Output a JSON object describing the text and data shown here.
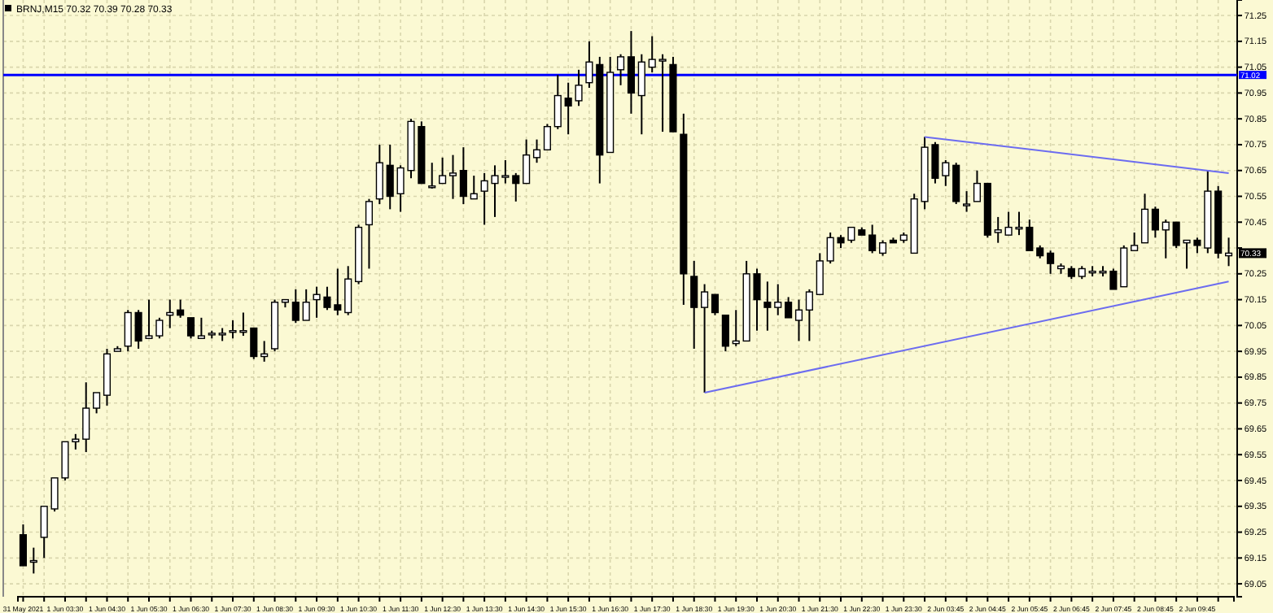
{
  "chart_data": {
    "type": "candlestick",
    "title": "BRNJ,M15 70.32 70.39 70.28 70.33",
    "ylim": [
      69.0,
      71.31
    ],
    "categories": [
      "31 May 2021",
      null,
      null,
      null,
      "1 Jun 03:30",
      null,
      null,
      null,
      "1 Jun 04:30",
      null,
      null,
      null,
      "1 Jun 05:30",
      null,
      null,
      null,
      "1 Jun 06:30",
      null,
      null,
      null,
      "1 Jun 07:30",
      null,
      null,
      null,
      "1 Jun 08:30",
      null,
      null,
      null,
      "1 Jun 09:30",
      null,
      null,
      null,
      "1 Jun 10:30",
      null,
      null,
      null,
      "1 Jun 11:30",
      null,
      null,
      null,
      "1 Jun 12:30",
      null,
      null,
      null,
      "1 Jun 13:30",
      null,
      null,
      null,
      "1 Jun 14:30",
      null,
      null,
      null,
      "1 Jun 15:30",
      null,
      null,
      null,
      "1 Jun 16:30",
      null,
      null,
      null,
      "1 Jun 17:30",
      null,
      null,
      null,
      "1 Jun 18:30",
      null,
      null,
      null,
      "1 Jun 19:30",
      null,
      null,
      null,
      "1 Jun 20:30",
      null,
      null,
      null,
      "1 Jun 21:30",
      null,
      null,
      null,
      "1 Jun 22:30",
      null,
      null,
      null,
      "1 Jun 23:30",
      null,
      null,
      null,
      "2 Jun 03:45",
      null,
      null,
      null,
      "2 Jun 04:45",
      null,
      null,
      null,
      "2 Jun 05:45",
      null,
      null,
      null,
      "2 Jun 06:45",
      null,
      null,
      null,
      "2 Jun 07:45",
      null,
      null,
      null,
      "2 Jun 08:45",
      null,
      null,
      null,
      "2 Jun 09:45",
      null,
      null,
      null
    ],
    "yticks": [
      69.05,
      69.15,
      69.25,
      69.35,
      69.45,
      69.55,
      69.65,
      69.75,
      69.85,
      69.95,
      70.05,
      70.15,
      70.25,
      {
        "value": 70.35,
        "label": null
      },
      70.45,
      70.55,
      70.65,
      70.75,
      70.85,
      70.95,
      71.05,
      71.15,
      71.25
    ],
    "grid": true,
    "series": [
      {
        "ohlc": [
          [
            69.24,
            69.28,
            69.12,
            69.12
          ],
          [
            69.14,
            69.19,
            69.09,
            69.14
          ],
          [
            69.23,
            69.35,
            69.15,
            69.35
          ],
          [
            69.34,
            69.46,
            69.33,
            69.46
          ],
          [
            69.46,
            69.6,
            69.45,
            69.6
          ],
          [
            69.6,
            69.63,
            69.57,
            69.61
          ],
          [
            69.61,
            69.83,
            69.56,
            69.73
          ],
          [
            69.73,
            69.79,
            69.71,
            69.79
          ],
          [
            69.78,
            69.96,
            69.74,
            69.94
          ],
          [
            69.95,
            69.97,
            69.95,
            69.96
          ],
          [
            69.97,
            70.11,
            69.95,
            70.1
          ],
          [
            70.1,
            70.11,
            69.96,
            69.99
          ],
          [
            70.0,
            70.15,
            70.0,
            70.01
          ],
          [
            70.01,
            70.08,
            70.0,
            70.07
          ],
          [
            70.09,
            70.15,
            70.04,
            70.1
          ],
          [
            70.11,
            70.15,
            70.08,
            70.09
          ],
          [
            70.08,
            70.08,
            70.0,
            70.01
          ],
          [
            70.0,
            70.08,
            70.0,
            70.01
          ],
          [
            70.02,
            70.03,
            70.0,
            70.02
          ],
          [
            70.02,
            70.04,
            69.99,
            70.02
          ],
          [
            70.03,
            70.07,
            70.0,
            70.03
          ],
          [
            70.03,
            70.1,
            70.01,
            70.03
          ],
          [
            70.04,
            70.04,
            69.92,
            69.93
          ],
          [
            69.93,
            69.99,
            69.91,
            69.94
          ],
          [
            69.96,
            70.15,
            69.95,
            70.14
          ],
          [
            70.14,
            70.15,
            70.12,
            70.15
          ],
          [
            70.14,
            70.19,
            70.06,
            70.07
          ],
          [
            70.07,
            70.19,
            70.07,
            70.14
          ],
          [
            70.15,
            70.2,
            70.08,
            70.17
          ],
          [
            70.16,
            70.2,
            70.11,
            70.12
          ],
          [
            70.13,
            70.27,
            70.09,
            70.11
          ],
          [
            70.1,
            70.28,
            70.09,
            70.23
          ],
          [
            70.22,
            70.44,
            70.21,
            70.43
          ],
          [
            70.44,
            70.54,
            70.27,
            70.53
          ],
          [
            70.54,
            70.75,
            70.52,
            70.68
          ],
          [
            70.67,
            70.75,
            70.5,
            70.55
          ],
          [
            70.56,
            70.67,
            70.49,
            70.66
          ],
          [
            70.65,
            70.85,
            70.62,
            70.84
          ],
          [
            70.82,
            70.84,
            70.6,
            70.6
          ],
          [
            70.59,
            70.68,
            70.58,
            70.59
          ],
          [
            70.6,
            70.7,
            70.6,
            70.63
          ],
          [
            70.63,
            70.71,
            70.54,
            70.64
          ],
          [
            70.65,
            70.74,
            70.52,
            70.55
          ],
          [
            70.54,
            70.63,
            70.54,
            70.56
          ],
          [
            70.57,
            70.64,
            70.44,
            70.61
          ],
          [
            70.6,
            70.67,
            70.47,
            70.63
          ],
          [
            70.63,
            70.69,
            70.6,
            70.63
          ],
          [
            70.63,
            70.64,
            70.53,
            70.6
          ],
          [
            70.6,
            70.77,
            70.6,
            70.71
          ],
          [
            70.7,
            70.77,
            70.68,
            70.73
          ],
          [
            70.73,
            70.83,
            70.73,
            70.82
          ],
          [
            70.82,
            71.02,
            70.81,
            70.94
          ],
          [
            70.93,
            70.99,
            70.79,
            70.9
          ],
          [
            70.92,
            71.04,
            70.9,
            70.98
          ],
          [
            70.99,
            71.15,
            70.97,
            71.07
          ],
          [
            71.06,
            71.09,
            70.6,
            70.71
          ],
          [
            70.72,
            71.09,
            70.72,
            71.03
          ],
          [
            71.04,
            71.1,
            70.98,
            71.09
          ],
          [
            71.09,
            71.19,
            70.87,
            70.95
          ],
          [
            70.94,
            71.1,
            70.79,
            71.07
          ],
          [
            71.05,
            71.17,
            71.03,
            71.08
          ],
          [
            71.08,
            71.1,
            70.8,
            71.08
          ],
          [
            71.06,
            71.09,
            70.8,
            70.8
          ],
          [
            70.79,
            70.87,
            70.13,
            70.25
          ],
          [
            70.24,
            70.3,
            69.96,
            70.12
          ],
          [
            70.12,
            70.21,
            69.79,
            70.18
          ],
          [
            70.17,
            70.17,
            70.09,
            70.1
          ],
          [
            70.09,
            70.09,
            69.95,
            69.97
          ],
          [
            69.98,
            70.11,
            69.97,
            69.99
          ],
          [
            69.99,
            70.3,
            69.99,
            70.25
          ],
          [
            70.25,
            70.27,
            70.03,
            70.15
          ],
          [
            70.14,
            70.22,
            70.03,
            70.12
          ],
          [
            70.12,
            70.21,
            70.09,
            70.14
          ],
          [
            70.14,
            70.16,
            70.08,
            70.08
          ],
          [
            70.07,
            70.15,
            69.99,
            70.11
          ],
          [
            70.11,
            70.19,
            69.99,
            70.18
          ],
          [
            70.17,
            70.33,
            70.17,
            70.3
          ],
          [
            70.3,
            70.41,
            70.29,
            70.39
          ],
          [
            70.39,
            70.4,
            70.35,
            70.37
          ],
          [
            70.38,
            70.43,
            70.37,
            70.43
          ],
          [
            70.42,
            70.43,
            70.4,
            70.4
          ],
          [
            70.4,
            70.44,
            70.33,
            70.34
          ],
          [
            70.33,
            70.38,
            70.32,
            70.37
          ],
          [
            70.38,
            70.39,
            70.37,
            70.37
          ],
          [
            70.38,
            70.41,
            70.37,
            70.4
          ],
          [
            70.33,
            70.56,
            70.33,
            70.54
          ],
          [
            70.53,
            70.78,
            70.5,
            70.74
          ],
          [
            70.75,
            70.76,
            70.6,
            70.62
          ],
          [
            70.63,
            70.69,
            70.59,
            70.68
          ],
          [
            70.67,
            70.68,
            70.52,
            70.53
          ],
          [
            70.52,
            70.57,
            70.49,
            70.52
          ],
          [
            70.53,
            70.65,
            70.53,
            70.6
          ],
          [
            70.6,
            70.6,
            70.39,
            70.4
          ],
          [
            70.41,
            70.47,
            70.37,
            70.42
          ],
          [
            70.4,
            70.49,
            70.4,
            70.43
          ],
          [
            70.43,
            70.49,
            70.4,
            70.43
          ],
          [
            70.43,
            70.46,
            70.34,
            70.34
          ],
          [
            70.35,
            70.36,
            70.31,
            70.32
          ],
          [
            70.33,
            70.34,
            70.25,
            70.29
          ],
          [
            70.27,
            70.29,
            70.25,
            70.28
          ],
          [
            70.27,
            70.28,
            70.23,
            70.24
          ],
          [
            70.24,
            70.28,
            70.23,
            70.27
          ],
          [
            70.26,
            70.28,
            70.24,
            70.26
          ],
          [
            70.26,
            70.28,
            70.24,
            70.26
          ],
          [
            70.26,
            70.27,
            70.19,
            70.19
          ],
          [
            70.2,
            70.36,
            70.2,
            70.35
          ],
          [
            70.34,
            70.41,
            70.34,
            70.36
          ],
          [
            70.37,
            70.56,
            70.37,
            70.5
          ],
          [
            70.5,
            70.51,
            70.39,
            70.42
          ],
          [
            70.42,
            70.46,
            70.31,
            70.45
          ],
          [
            70.45,
            70.45,
            70.35,
            70.36
          ],
          [
            70.37,
            70.38,
            70.27,
            70.38
          ],
          [
            70.38,
            70.39,
            70.33,
            70.36
          ],
          [
            70.35,
            70.65,
            70.33,
            70.57
          ],
          [
            70.57,
            70.59,
            70.31,
            70.33
          ],
          [
            70.32,
            70.39,
            70.28,
            70.33
          ]
        ]
      },
      {
        "type": "line",
        "values": [
          null,
          null,
          null,
          null,
          null,
          null,
          null,
          null,
          null,
          null,
          null,
          null,
          null,
          null,
          null,
          null,
          null,
          null,
          null,
          null,
          null,
          null,
          null,
          null,
          null,
          null,
          null,
          null,
          null,
          null,
          null,
          null,
          null,
          null,
          null,
          null,
          null,
          null,
          null,
          null,
          null,
          null,
          null,
          null,
          null,
          null,
          null,
          null,
          null,
          null,
          null,
          null,
          null,
          null,
          null,
          null,
          null,
          null,
          null,
          null,
          null,
          null,
          null,
          null,
          null,
          null,
          null,
          null,
          null,
          null,
          null,
          null,
          null,
          null,
          null,
          null,
          null,
          null,
          null,
          null,
          null,
          null,
          null,
          null,
          null,
          null,
          70.78,
          null,
          null,
          null,
          null,
          null,
          null,
          null,
          null,
          null,
          null,
          null,
          null,
          null,
          null,
          null,
          null,
          null,
          null,
          null,
          null,
          null,
          null,
          null,
          null,
          null,
          null,
          null,
          null,
          70.64
        ],
        "color": "#6c6cf0"
      },
      {
        "type": "line",
        "values": [
          null,
          null,
          null,
          null,
          null,
          null,
          null,
          null,
          null,
          null,
          null,
          null,
          null,
          null,
          null,
          null,
          null,
          null,
          null,
          null,
          null,
          null,
          null,
          null,
          null,
          null,
          null,
          null,
          null,
          null,
          null,
          null,
          null,
          null,
          null,
          null,
          null,
          null,
          null,
          null,
          null,
          null,
          null,
          null,
          null,
          null,
          null,
          null,
          null,
          null,
          null,
          null,
          null,
          null,
          null,
          null,
          null,
          null,
          null,
          null,
          null,
          null,
          null,
          null,
          null,
          69.79,
          null,
          null,
          null,
          null,
          null,
          null,
          null,
          null,
          null,
          null,
          null,
          null,
          null,
          null,
          null,
          null,
          null,
          null,
          null,
          null,
          null,
          null,
          null,
          null,
          null,
          null,
          null,
          null,
          null,
          null,
          null,
          null,
          null,
          null,
          null,
          null,
          null,
          null,
          null,
          null,
          null,
          null,
          null,
          null,
          null,
          null,
          null,
          null,
          null,
          70.22
        ],
        "color": "#6c6cf0"
      }
    ],
    "ref_lines": [
      {
        "axis": "y",
        "value": 71.02,
        "label": "71.02",
        "color": "#0000ff"
      }
    ],
    "annotations": [
      {
        "text": "70.33",
        "y": 70.33
      }
    ]
  }
}
